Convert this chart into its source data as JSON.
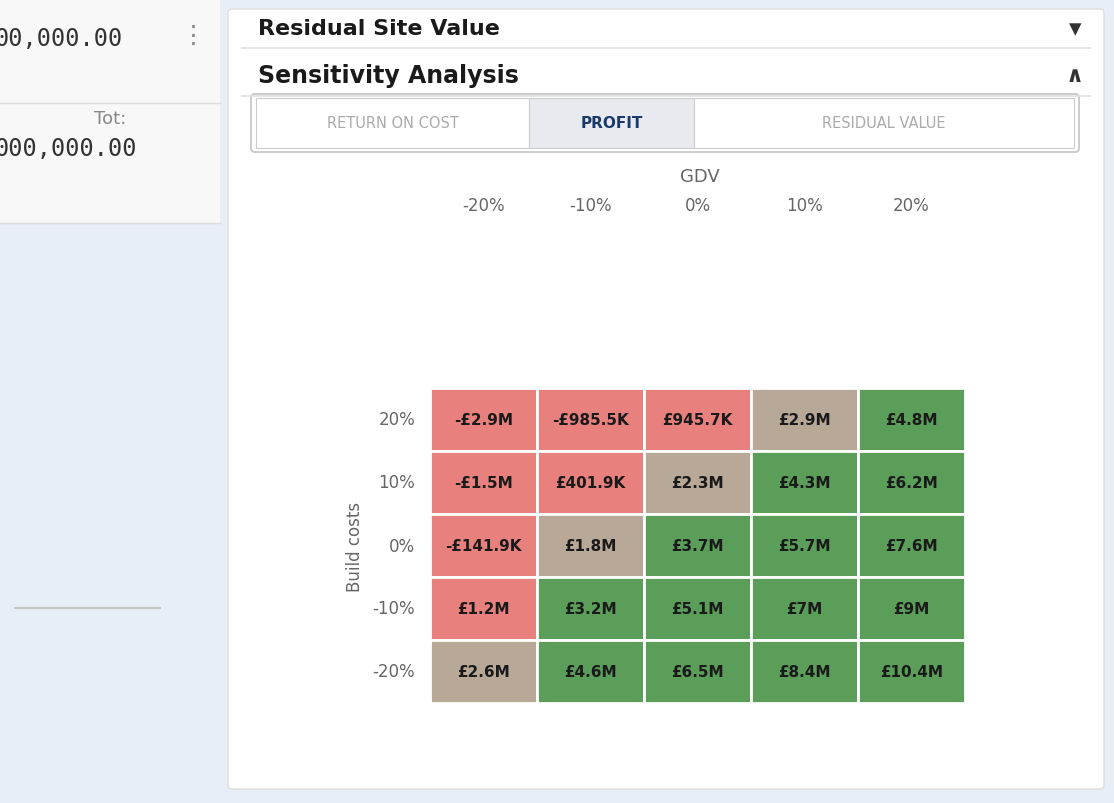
{
  "title": "Sensitivity Analysis",
  "residual_title": "Residual Site Value",
  "tab_labels": [
    "RETURN ON COST",
    "PROFIT",
    "RESIDUAL VALUE"
  ],
  "active_tab": 1,
  "gdv_label": "GDV",
  "build_costs_label": "Build costs",
  "col_headers": [
    "-20%",
    "-10%",
    "0%",
    "10%",
    "20%"
  ],
  "row_headers": [
    "20%",
    "10%",
    "0%",
    "-10%",
    "-20%"
  ],
  "cell_values": [
    [
      "-£2.9M",
      "-£985.5K",
      "£945.7K",
      "£2.9M",
      "£4.8M"
    ],
    [
      "-£1.5M",
      "£401.9K",
      "£2.3M",
      "£4.3M",
      "£6.2M"
    ],
    [
      "-£141.9K",
      "£1.8M",
      "£3.7M",
      "£5.7M",
      "£7.6M"
    ],
    [
      "£1.2M",
      "£3.2M",
      "£5.1M",
      "£7M",
      "£9M"
    ],
    [
      "£2.6M",
      "£4.6M",
      "£6.5M",
      "£8.4M",
      "£10.4M"
    ]
  ],
  "cell_colors": [
    [
      "#e8817e",
      "#e8817e",
      "#e8817e",
      "#b8a898",
      "#5a9e5a"
    ],
    [
      "#e8817e",
      "#e8817e",
      "#b8a898",
      "#5a9e5a",
      "#5a9e5a"
    ],
    [
      "#e8817e",
      "#b8a898",
      "#5a9e5a",
      "#5a9e5a",
      "#5a9e5a"
    ],
    [
      "#e8817e",
      "#5a9e5a",
      "#5a9e5a",
      "#5a9e5a",
      "#5a9e5a"
    ],
    [
      "#b8a898",
      "#5a9e5a",
      "#5a9e5a",
      "#5a9e5a",
      "#5a9e5a"
    ]
  ],
  "sidebar_top_bg": "#f5f5f5",
  "sidebar_bottom_bg": "#eef1f5",
  "page_bg": "#e8eef5",
  "panel_color": "#ffffff",
  "tab_active_color": "#e8eaf0",
  "tab_inactive_color": "#ffffff",
  "tab_active_text_color": "#1a3a6b",
  "tab_inactive_text_color": "#aaaaaa",
  "title_color": "#1a1a1a",
  "header_color": "#666666",
  "cell_text_color": "#1a1a1a",
  "fig_width": 11.14,
  "fig_height": 8.04,
  "sidebar_text_color": "#333333",
  "sidebar_label_color": "#888888"
}
